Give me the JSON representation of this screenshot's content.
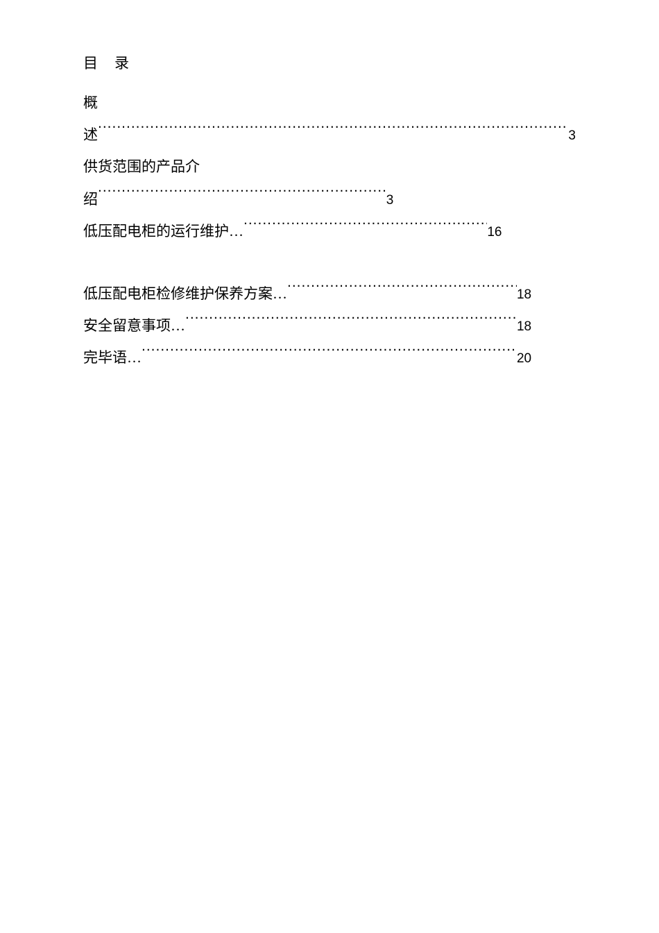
{
  "heading": "目录",
  "entries": [
    {
      "preline": "概",
      "text": "述",
      "page": "3",
      "widthClass": ""
    },
    {
      "preline": "供货范围的产品介",
      "text": "绍",
      "page": "3",
      "widthClass": "line-short-1"
    },
    {
      "preline": null,
      "text": "低压配电柜的运行维护…",
      "page": "16",
      "widthClass": "line-short-2"
    }
  ],
  "entries2": [
    {
      "text": "低压配电柜检修维护保养方案…",
      "page": "18",
      "widthClass": "line-short-3"
    },
    {
      "text": "安全留意事项…",
      "page": "18",
      "widthClass": "line-short-3"
    },
    {
      "text": "完毕语…",
      "page": "20",
      "widthClass": "line-short-3"
    }
  ],
  "colors": {
    "text": "#000000",
    "background": "#ffffff"
  },
  "typography": {
    "body_fontsize": 21,
    "page_fontsize": 19,
    "heading_letterspacing": 24
  }
}
